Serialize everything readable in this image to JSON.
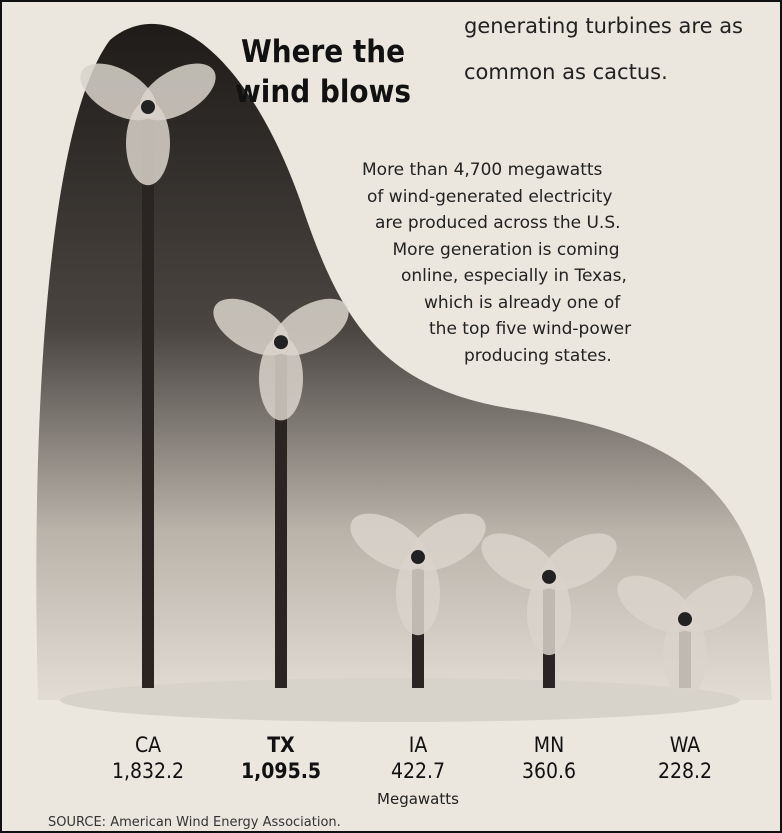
{
  "article_text": [
    "generating turbines are as",
    "common as cactus."
  ],
  "chart_data": {
    "type": "pictograph",
    "title": "Where the wind blows",
    "description": [
      "More than 4,700 megawatts",
      "of wind-generated electricity",
      "are produced across the U.S.",
      "More generation is coming",
      "online, especially in Texas,",
      "which is already one of",
      "the top five wind-power",
      "producing states."
    ],
    "categories": [
      "CA",
      "TX",
      "IA",
      "MN",
      "WA"
    ],
    "values": [
      1832.2,
      1095.5,
      422.7,
      360.6,
      228.2
    ],
    "value_labels": [
      "1,832.2",
      "1,095.5",
      "422.7",
      "360.6",
      "228.2"
    ],
    "unit": "Megawatts",
    "source": "SOURCE: American Wind Energy Association.",
    "color": "#2a2522"
  }
}
